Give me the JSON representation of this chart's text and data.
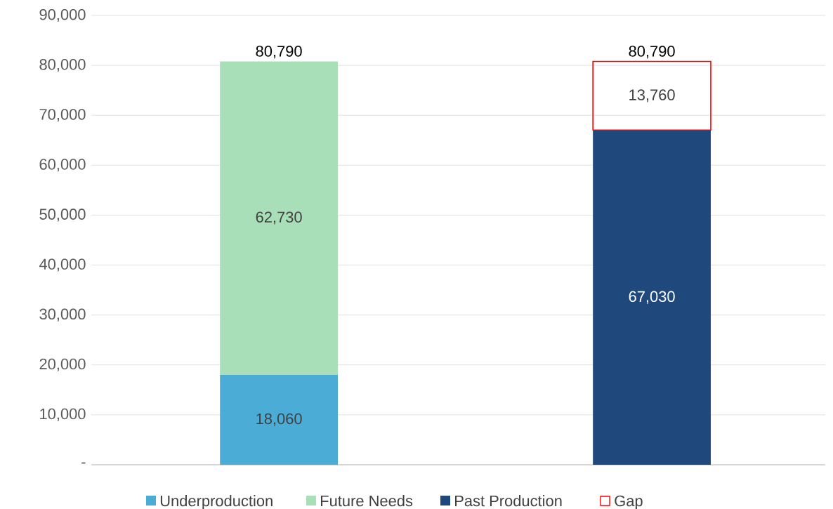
{
  "chart_data": {
    "type": "bar",
    "stacked": true,
    "categories": [
      null,
      null
    ],
    "series": [
      {
        "name": "Underproduction",
        "color": "#4bacd6",
        "values": [
          18060,
          null
        ],
        "value_labels": [
          "18,060",
          null
        ]
      },
      {
        "name": "Future Needs",
        "color": "#a9dfb8",
        "values": [
          62730,
          null
        ],
        "value_labels": [
          "62,730",
          null
        ]
      },
      {
        "name": "Past Production",
        "color": "#1f497d",
        "values": [
          null,
          67030
        ],
        "value_labels": [
          null,
          "67,030"
        ]
      },
      {
        "name": "Gap",
        "color": "#ff0000",
        "line_style": "solid",
        "values": [
          null,
          13760
        ],
        "value_labels": [
          null,
          "13,760"
        ]
      }
    ],
    "totals": [
      "80,790",
      "80,790"
    ],
    "ylim": [
      0,
      90000
    ],
    "yticks": [
      {
        "value": 0,
        "label": "-"
      },
      {
        "value": 10000,
        "label": "10,000"
      },
      {
        "value": 20000,
        "label": "20,000"
      },
      {
        "value": 30000,
        "label": "30,000"
      },
      {
        "value": 40000,
        "label": "40,000"
      },
      {
        "value": 50000,
        "label": "50,000"
      },
      {
        "value": 60000,
        "label": "60,000"
      },
      {
        "value": 70000,
        "label": "70,000"
      },
      {
        "value": 80000,
        "label": "80,000"
      },
      {
        "value": 90000,
        "label": "90,000"
      }
    ],
    "grid": "y",
    "legend": "bottom"
  }
}
